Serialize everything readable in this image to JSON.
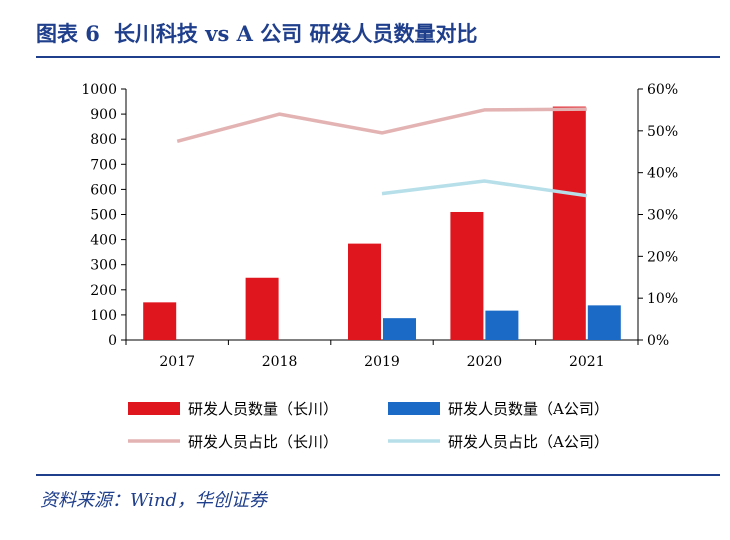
{
  "figure": {
    "label": "图表 6",
    "title": "长川科技 vs A 公司 研发人员数量对比"
  },
  "source": {
    "label": "资料来源：",
    "text": "Wind，华创证券"
  },
  "colors": {
    "title": "#1f3f8c",
    "bar_changchuan": "#e0161f",
    "bar_a": "#1b6ac5",
    "line_changchuan": "#e3b3b3",
    "line_a": "#b6dfea"
  },
  "chart_data": {
    "type": "bar",
    "categories": [
      "2017",
      "2018",
      "2019",
      "2020",
      "2021"
    ],
    "y_left": {
      "min": 0,
      "max": 1000,
      "step": 100,
      "ticks": [
        "0",
        "100",
        "200",
        "300",
        "400",
        "500",
        "600",
        "700",
        "800",
        "900",
        "1000"
      ]
    },
    "y_right": {
      "min": 0,
      "max": 60,
      "step": 10,
      "ticks": [
        "0%",
        "10%",
        "20%",
        "30%",
        "40%",
        "50%",
        "60%"
      ]
    },
    "series": [
      {
        "name": "研发人员数量（长川）",
        "type": "bar",
        "axis": "left",
        "color": "#e0161f",
        "values": [
          150,
          248,
          384,
          510,
          930
        ]
      },
      {
        "name": "研发人员数量（A公司）",
        "type": "bar",
        "axis": "left",
        "color": "#1b6ac5",
        "values": [
          null,
          null,
          87,
          117,
          138
        ]
      },
      {
        "name": "研发人员占比（长川）",
        "type": "line",
        "axis": "right",
        "color": "#e3b3b3",
        "values": [
          47.5,
          54,
          49.5,
          55,
          55.2
        ]
      },
      {
        "name": "研发人员占比（A公司）",
        "type": "line",
        "axis": "right",
        "color": "#b6dfea",
        "values": [
          null,
          null,
          35,
          38,
          34.5
        ]
      }
    ],
    "legend_position": "bottom",
    "grid": false
  }
}
